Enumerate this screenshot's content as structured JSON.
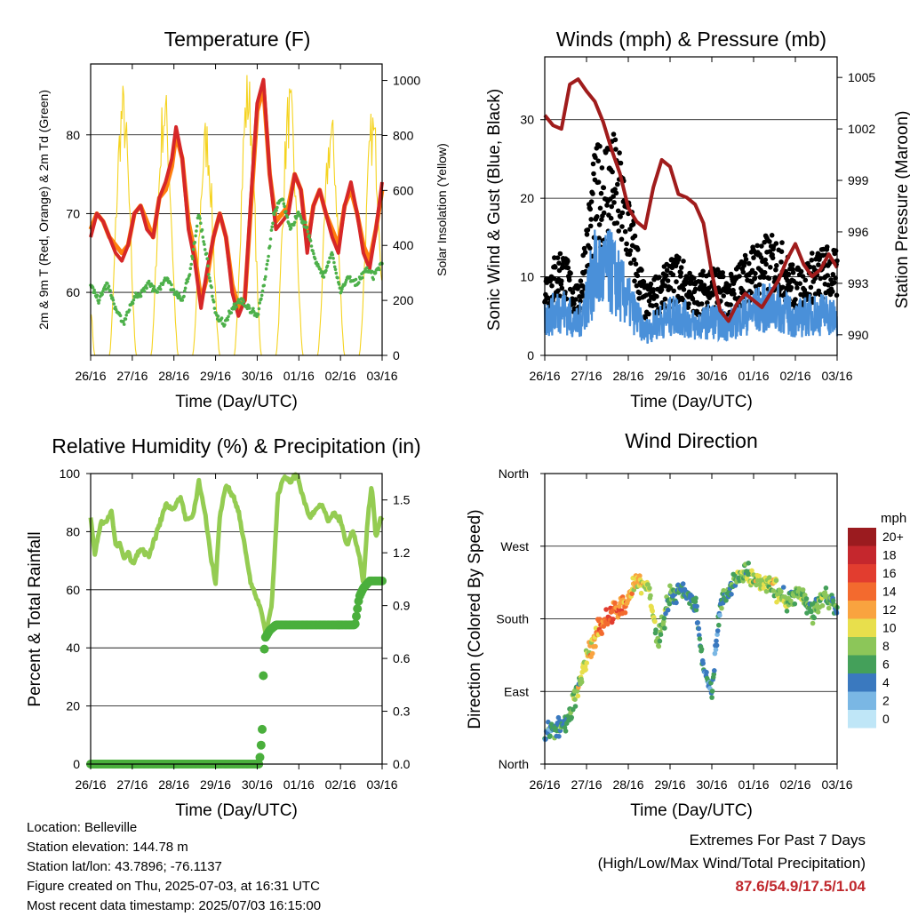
{
  "chart_data": [
    {
      "type": "line",
      "title": "Temperature (F)",
      "xlabel": "Time (Day/UTC)",
      "ylabel": "2m & 9m T (Red, Orange) & 2m Td (Green)",
      "y2label": "Solar Insolation (Yellow)",
      "xticks": [
        "26/16",
        "27/16",
        "28/16",
        "29/16",
        "30/16",
        "01/16",
        "02/16",
        "03/16"
      ],
      "ylim": [
        52,
        89
      ],
      "yticks": [
        60,
        70,
        80
      ],
      "y2lim": [
        0,
        1060
      ],
      "y2ticks": [
        0,
        200,
        400,
        600,
        800,
        1000
      ],
      "grid": "horizontal at left-axis ticks",
      "series": [
        {
          "color": "#d62728",
          "x_days": [
            0,
            0.15,
            0.3,
            0.45,
            0.6,
            0.75,
            0.9,
            1.05,
            1.2,
            1.35,
            1.5,
            1.65,
            1.8,
            1.95,
            2.05,
            2.2,
            2.35,
            2.5,
            2.65,
            2.8,
            2.95,
            3.1,
            3.25,
            3.4,
            3.55,
            3.7,
            3.85,
            4.0,
            4.15,
            4.3,
            4.45,
            4.6,
            4.75,
            4.9,
            5.05,
            5.2,
            5.35,
            5.5,
            5.65,
            5.8,
            5.95,
            6.1,
            6.25,
            6.4,
            6.55,
            6.7,
            6.85,
            7.0
          ],
          "values": [
            67,
            70,
            69,
            67,
            65,
            64,
            66,
            70,
            71,
            68,
            67,
            72,
            74,
            77,
            81,
            77,
            68,
            64,
            58,
            63,
            67,
            70,
            67,
            60,
            57,
            59,
            72,
            84,
            87,
            75,
            68,
            69,
            70,
            75,
            73,
            65,
            71,
            73,
            70,
            67,
            65,
            71,
            74,
            70,
            65,
            63,
            68,
            74
          ]
        },
        {
          "color": "#ff7f0e",
          "x_days": [
            0,
            0.15,
            0.3,
            0.45,
            0.6,
            0.75,
            0.9,
            1.05,
            1.2,
            1.35,
            1.5,
            1.65,
            1.8,
            1.95,
            2.05,
            2.2,
            2.35,
            2.5,
            2.65,
            2.8,
            2.95,
            3.1,
            3.25,
            3.4,
            3.55,
            3.7,
            3.85,
            4.0,
            4.15,
            4.3,
            4.45,
            4.6,
            4.75,
            4.9,
            5.05,
            5.2,
            5.35,
            5.5,
            5.65,
            5.8,
            5.95,
            6.1,
            6.25,
            6.4,
            6.55,
            6.7,
            6.85,
            7.0
          ],
          "values": [
            68,
            70,
            69,
            67,
            66,
            65,
            66,
            70,
            71,
            69,
            67,
            72,
            73,
            76,
            80,
            77,
            69,
            65,
            59,
            62,
            67,
            70,
            67,
            61,
            58,
            59,
            71,
            83,
            86,
            75,
            69,
            70,
            71,
            75,
            73,
            66,
            71,
            73,
            70,
            68,
            66,
            71,
            73,
            70,
            66,
            64,
            68,
            73
          ]
        },
        {
          "color": "#4db04a",
          "x_days": [
            0,
            0.2,
            0.4,
            0.6,
            0.8,
            1.0,
            1.2,
            1.4,
            1.6,
            1.8,
            2.0,
            2.2,
            2.4,
            2.6,
            2.8,
            3.0,
            3.2,
            3.4,
            3.6,
            3.8,
            4.0,
            4.2,
            4.4,
            4.6,
            4.8,
            5.0,
            5.2,
            5.4,
            5.6,
            5.8,
            6.0,
            6.2,
            6.4,
            6.6,
            6.8,
            7.0
          ],
          "values": [
            61,
            59,
            61,
            58,
            56,
            59,
            60,
            61,
            60,
            62,
            60,
            59,
            63,
            70,
            64,
            57,
            56,
            58,
            59,
            58,
            57,
            62,
            70,
            72,
            68,
            70,
            68,
            64,
            62,
            65,
            60,
            62,
            61,
            63,
            62,
            64
          ]
        }
      ],
      "solar": {
        "color": "#f5d31f",
        "peaks": [
          840,
          1000,
          1000,
          880,
          1060,
          1000,
          900,
          920
        ]
      }
    },
    {
      "type": "scatter",
      "title": "Winds (mph) & Pressure (mb)",
      "xlabel": "Time (Day/UTC)",
      "ylabel": "Sonic Wind & Gust (Blue, Black)",
      "y2label": "Station Pressure (Maroon)",
      "xticks": [
        "26/16",
        "27/16",
        "28/16",
        "29/16",
        "30/16",
        "01/16",
        "02/16",
        "03/16"
      ],
      "ylim": [
        0,
        38
      ],
      "yticks": [
        0,
        10,
        20,
        30
      ],
      "y2lim": [
        988.8,
        1006.2
      ],
      "y2ticks": [
        990,
        993,
        996,
        999,
        1002,
        1005
      ],
      "grid": "horizontal at left-axis ticks",
      "wind_blue_color": "#4a90d9",
      "gust_black_color": "#000000",
      "pressure": {
        "color": "#a01c1c",
        "x_days": [
          0,
          0.2,
          0.4,
          0.6,
          0.8,
          1.0,
          1.2,
          1.4,
          1.6,
          1.8,
          2.0,
          2.2,
          2.4,
          2.6,
          2.8,
          3.0,
          3.2,
          3.4,
          3.6,
          3.8,
          4.0,
          4.2,
          4.4,
          4.6,
          4.8,
          5.0,
          5.2,
          5.4,
          5.6,
          5.8,
          6.0,
          6.2,
          6.4,
          6.6,
          6.8,
          7.0
        ],
        "values": [
          1002.8,
          1002.2,
          1002.0,
          1004.6,
          1004.9,
          1004.2,
          1003.6,
          1002.4,
          1000.8,
          999.4,
          997.4,
          996.6,
          996.2,
          998.6,
          1000.2,
          999.8,
          998.2,
          998.0,
          997.6,
          996.5,
          993.6,
          991.4,
          990.8,
          991.8,
          992.4,
          992.0,
          991.6,
          992.4,
          993.2,
          994.4,
          995.3,
          994.1,
          993.4,
          993.8,
          994.7,
          993.9
        ]
      },
      "wind_envelope": {
        "x_days": [
          0,
          0.4,
          0.8,
          1.2,
          1.6,
          2.0,
          2.4,
          2.8,
          3.2,
          3.6,
          4.0,
          4.4,
          4.8,
          5.2,
          5.6,
          6.0,
          6.4,
          6.8,
          7.0
        ],
        "wind": [
          6,
          8,
          5,
          14,
          14,
          9,
          4,
          6,
          7,
          5,
          6,
          5,
          7,
          8,
          8,
          6,
          7,
          7,
          6
        ],
        "gust": [
          10,
          13,
          8,
          24,
          27,
          20,
          8,
          10,
          12,
          9,
          11,
          9,
          12,
          14,
          14,
          10,
          12,
          13,
          12
        ]
      }
    },
    {
      "type": "line",
      "title": "Relative Humidity (%) & Precipitation (in)",
      "xlabel": "Time (Day/UTC)",
      "ylabel": "Percent & Total Rainfall",
      "xticks": [
        "26/16",
        "27/16",
        "28/16",
        "29/16",
        "30/16",
        "01/16",
        "02/16",
        "03/16"
      ],
      "ylim": [
        0,
        100
      ],
      "yticks": [
        0,
        20,
        40,
        60,
        80,
        100
      ],
      "y2lim": [
        0,
        1.65
      ],
      "y2ticks": [
        "0.0",
        "0.3",
        "0.6",
        "0.9",
        "1.2",
        "1.5"
      ],
      "grid": "horizontal at left-axis ticks",
      "series": [
        {
          "color": "#94cc52",
          "x_days": [
            0,
            0.1,
            0.25,
            0.35,
            0.5,
            0.6,
            0.7,
            0.8,
            0.9,
            1.0,
            1.2,
            1.4,
            1.6,
            1.8,
            2.0,
            2.15,
            2.3,
            2.45,
            2.6,
            2.75,
            2.9,
            3.0,
            3.1,
            3.25,
            3.4,
            3.55,
            3.7,
            3.85,
            4.0,
            4.1,
            4.2,
            4.35,
            4.5,
            4.65,
            4.8,
            4.95,
            5.1,
            5.25,
            5.4,
            5.55,
            5.7,
            5.85,
            6.0,
            6.15,
            6.3,
            6.45,
            6.55,
            6.65,
            6.75,
            6.85,
            6.95,
            7.0
          ],
          "values": [
            85,
            72,
            84,
            83,
            87,
            75,
            76,
            71,
            73,
            69,
            74,
            72,
            80,
            89,
            88,
            92,
            84,
            85,
            97,
            86,
            70,
            62,
            85,
            96,
            93,
            87,
            75,
            62,
            57,
            52,
            45,
            55,
            93,
            99,
            97,
            100,
            92,
            85,
            87,
            90,
            84,
            86,
            84,
            75,
            80,
            72,
            62,
            84,
            96,
            78,
            84,
            85
          ]
        }
      ],
      "precip": {
        "color": "#4aaf3c",
        "x_days": [
          0,
          4.05,
          4.09,
          4.12,
          4.14,
          4.16,
          4.2,
          4.3,
          4.45,
          4.6,
          6.35,
          6.45,
          6.55,
          6.7,
          7.0
        ],
        "values": [
          0,
          0,
          0.1,
          0.2,
          0.45,
          0.62,
          0.72,
          0.76,
          0.79,
          0.79,
          0.79,
          0.95,
          1.0,
          1.04,
          1.04
        ]
      }
    },
    {
      "type": "scatter",
      "title": "Wind Direction",
      "xlabel": "Time (Day/UTC)",
      "ylabel": "Direction (Colored By Speed)",
      "xticks": [
        "26/16",
        "27/16",
        "28/16",
        "29/16",
        "30/16",
        "01/16",
        "02/16",
        "03/16"
      ],
      "yticks": [
        "North",
        "East",
        "South",
        "West",
        "North"
      ],
      "ylim_degrees": [
        0,
        360
      ],
      "grid": "horizontal at each direction",
      "legend": {
        "title": "mph",
        "labels": [
          "20+",
          "18",
          "16",
          "14",
          "12",
          "10",
          "8",
          "6",
          "4",
          "2",
          "0"
        ],
        "colors": [
          "#9b1b1f",
          "#c5272d",
          "#e23d2f",
          "#f36a2e",
          "#f9a33f",
          "#e8df4c",
          "#8cc659",
          "#44a05a",
          "#3a79bf",
          "#7ab7e4",
          "#bfe6f7"
        ]
      },
      "direction_trend": {
        "x_days": [
          0,
          0.3,
          0.6,
          1.0,
          1.3,
          1.6,
          2.0,
          2.2,
          2.5,
          2.7,
          3.0,
          3.3,
          3.6,
          3.8,
          4.0,
          4.2,
          4.5,
          4.8,
          5.2,
          5.5,
          5.8,
          6.1,
          6.4,
          6.7,
          7.0
        ],
        "degrees": [
          40,
          40,
          60,
          130,
          170,
          185,
          205,
          225,
          215,
          150,
          210,
          215,
          200,
          120,
          90,
          200,
          225,
          235,
          225,
          220,
          200,
          215,
          185,
          210,
          190
        ]
      }
    }
  ],
  "info": {
    "location": "Location: Belleville",
    "elevation": "Station elevation: 144.78 m",
    "latlon": "Station lat/lon: 43.7896; -76.1137",
    "created": "Figure created on Thu, 2025-07-03, at 16:31 UTC",
    "latest": "Most recent data timestamp: 2025/07/03 16:15:00"
  },
  "extremes": {
    "title": "Extremes For Past 7 Days",
    "subtitle": "(High/Low/Max Wind/Total Precipitation)",
    "values": "87.6/54.9/17.5/1.04"
  }
}
